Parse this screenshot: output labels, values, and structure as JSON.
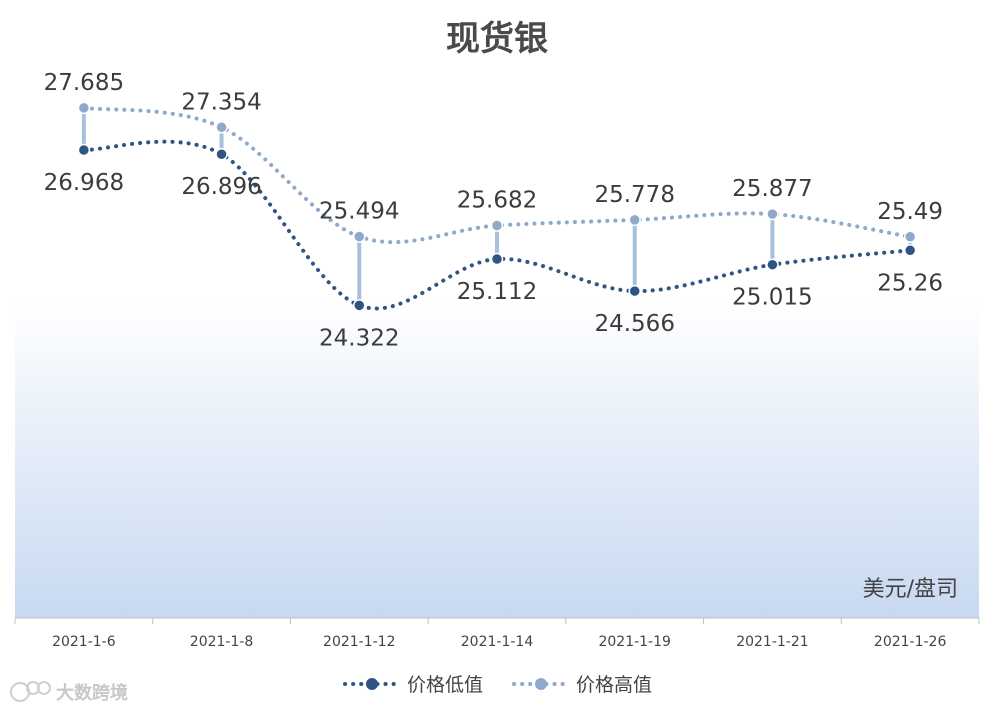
{
  "chart_data": {
    "type": "line",
    "title": "现货银",
    "unit_label": "美元/盘司",
    "categories": [
      "2021-1-6",
      "2021-1-8",
      "2021-1-12",
      "2021-1-14",
      "2021-1-19",
      "2021-1-21",
      "2021-1-26"
    ],
    "series": [
      {
        "name": "价格低值",
        "color": "#2e5584",
        "values": [
          26.968,
          26.896,
          24.322,
          25.112,
          24.566,
          25.015,
          25.26
        ]
      },
      {
        "name": "价格高值",
        "color": "#8ea9c9",
        "values": [
          27.685,
          27.354,
          25.494,
          25.682,
          25.778,
          25.877,
          25.49
        ]
      }
    ],
    "ylim": [
      19.0,
      28.5
    ],
    "grid": false,
    "legend_position": "bottom",
    "smooth": true,
    "high_low_lines": true,
    "background_gradient": [
      "#ffffff",
      "#c7d9f1"
    ]
  },
  "watermark": {
    "text": "大数跨境",
    "icon": "watermark-logo-icon"
  }
}
